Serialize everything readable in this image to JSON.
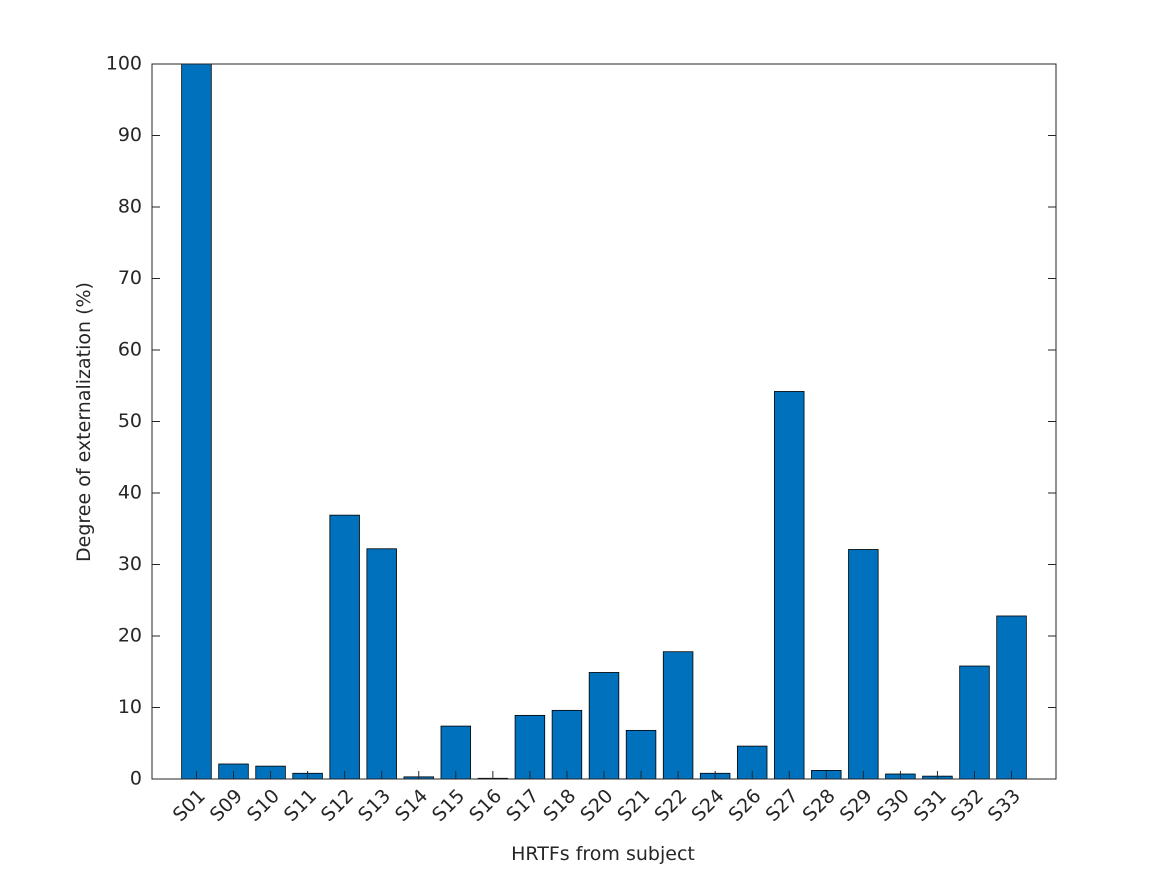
{
  "chart_data": {
    "type": "bar",
    "xlabel": "HRTFs from subject",
    "ylabel": "Degree of externalization (%)",
    "categories": [
      "S01",
      "S09",
      "S10",
      "S11",
      "S12",
      "S13",
      "S14",
      "S15",
      "S16",
      "S17",
      "S18",
      "S20",
      "S21",
      "S22",
      "S24",
      "S26",
      "S27",
      "S28",
      "S29",
      "S30",
      "S31",
      "S32",
      "S33"
    ],
    "values": [
      100,
      2.1,
      1.8,
      0.8,
      36.9,
      32.2,
      0.3,
      7.4,
      0.1,
      8.9,
      9.6,
      14.9,
      6.8,
      17.8,
      0.8,
      4.6,
      54.2,
      1.2,
      32.1,
      0.7,
      0.4,
      15.8,
      22.8
    ],
    "color": "#0072bd",
    "ylim": [
      0,
      100
    ],
    "yticks": [
      0,
      10,
      20,
      30,
      40,
      50,
      60,
      70,
      80,
      90,
      100
    ],
    "grid": false
  }
}
